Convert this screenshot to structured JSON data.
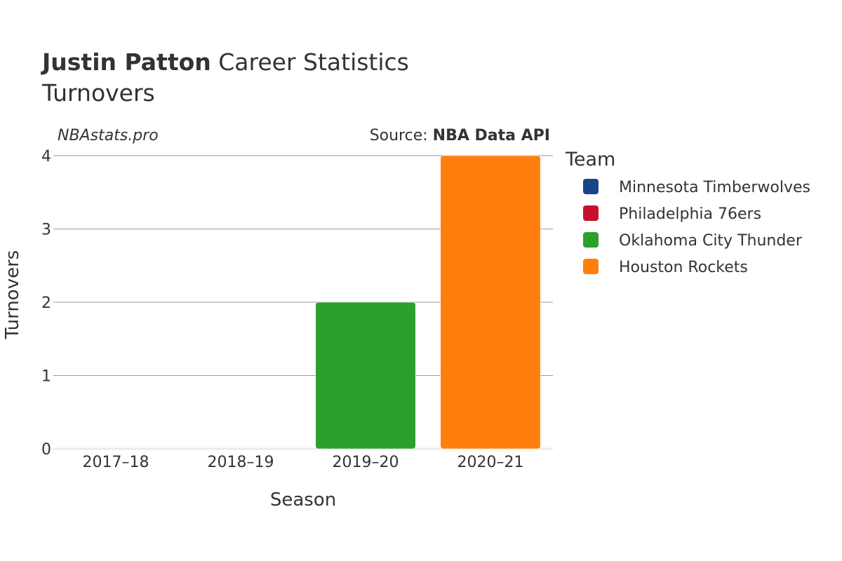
{
  "header": {
    "title_name": "Justin Patton",
    "title_rest": " Career Statistics",
    "subtitle": "Turnovers",
    "watermark": "NBAstats.pro",
    "source_prefix": "Source: ",
    "source_name": "NBA Data API"
  },
  "legend": {
    "title": "Team",
    "items": [
      {
        "label": "Minnesota Timberwolves",
        "color": "#1a4489"
      },
      {
        "label": "Philadelphia 76ers",
        "color": "#c8102e"
      },
      {
        "label": "Oklahoma City Thunder",
        "color": "#2ca02c"
      },
      {
        "label": "Houston Rockets",
        "color": "#ff7f0e"
      }
    ]
  },
  "chart_data": {
    "type": "bar",
    "xlabel": "Season",
    "ylabel": "Turnovers",
    "categories": [
      "2017–18",
      "2018–19",
      "2019–20",
      "2020–21"
    ],
    "ylim": [
      0,
      4
    ],
    "yticks": [
      0,
      1,
      2,
      3,
      4
    ],
    "grid": true,
    "legend_position": "right",
    "series": [
      {
        "name": "Minnesota Timberwolves",
        "color": "#1a4489",
        "values": [
          0,
          null,
          null,
          null
        ]
      },
      {
        "name": "Philadelphia 76ers",
        "color": "#c8102e",
        "values": [
          null,
          0,
          null,
          null
        ]
      },
      {
        "name": "Oklahoma City Thunder",
        "color": "#2ca02c",
        "values": [
          null,
          null,
          2,
          null
        ]
      },
      {
        "name": "Houston Rockets",
        "color": "#ff7f0e",
        "values": [
          null,
          null,
          null,
          4
        ]
      }
    ]
  }
}
